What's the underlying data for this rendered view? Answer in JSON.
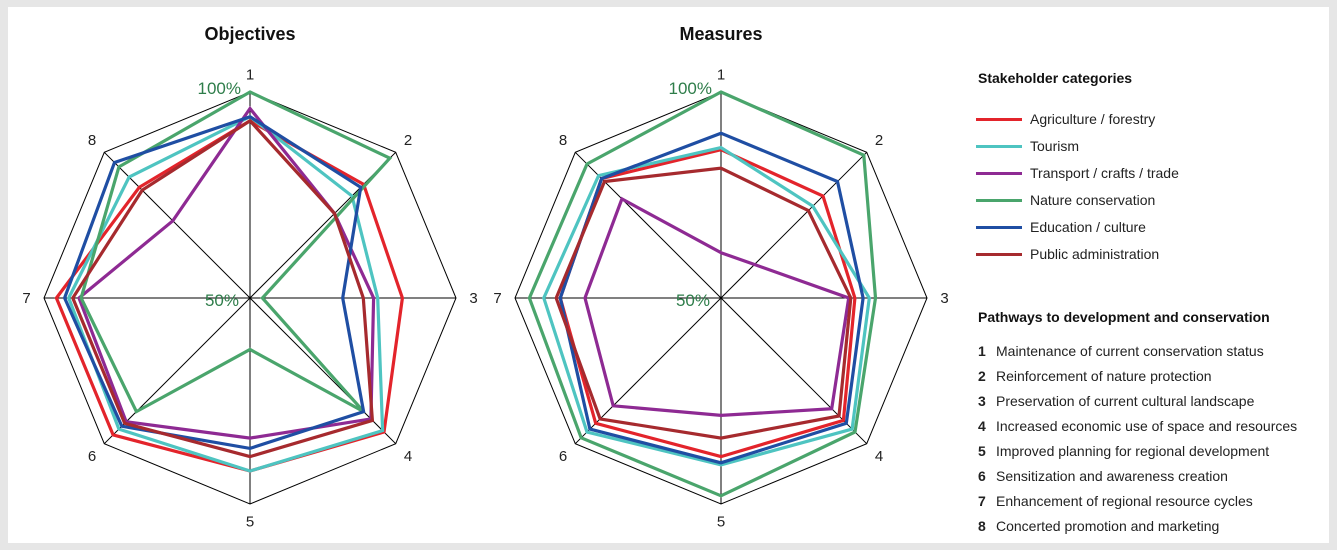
{
  "chart_data": [
    {
      "type": "radar",
      "title": "Objectives",
      "axes": [
        "1",
        "2",
        "3",
        "4",
        "5",
        "6",
        "7",
        "8"
      ],
      "scale_labels": {
        "max": "100%",
        "mid": "50%"
      },
      "range": [
        0,
        100
      ],
      "series": [
        {
          "name": "Agriculture / forestry",
          "values": [
            86,
            78,
            74,
            92,
            84,
            94,
            94,
            76
          ]
        },
        {
          "name": "Tourism",
          "values": [
            88,
            70,
            62,
            91,
            84,
            90,
            88,
            83
          ]
        },
        {
          "name": "Transport / crafts / trade",
          "values": [
            92,
            58,
            60,
            83,
            68,
            85,
            83,
            53
          ]
        },
        {
          "name": "Nature conservation",
          "values": [
            100,
            96,
            6,
            78,
            25,
            78,
            82,
            90
          ]
        },
        {
          "name": "Education / culture",
          "values": [
            88,
            76,
            45,
            78,
            73,
            88,
            90,
            93
          ]
        },
        {
          "name": "Public administration",
          "values": [
            86,
            58,
            55,
            84,
            77,
            86,
            86,
            74
          ]
        }
      ]
    },
    {
      "type": "radar",
      "title": "Measures",
      "axes": [
        "1",
        "2",
        "3",
        "4",
        "5",
        "6",
        "7",
        "8"
      ],
      "scale_labels": {
        "max": "100%",
        "mid": "50%"
      },
      "range": [
        0,
        100
      ],
      "series": [
        {
          "name": "Agriculture / forestry",
          "values": [
            72,
            70,
            65,
            84,
            77,
            86,
            78,
            82
          ]
        },
        {
          "name": "Tourism",
          "values": [
            73,
            63,
            72,
            90,
            81,
            92,
            86,
            84
          ]
        },
        {
          "name": "Transport / crafts / trade",
          "values": [
            22,
            23,
            62,
            76,
            57,
            74,
            66,
            68
          ]
        },
        {
          "name": "Nature conservation",
          "values": [
            100,
            98,
            75,
            92,
            96,
            96,
            93,
            92
          ]
        },
        {
          "name": "Education / culture",
          "values": [
            80,
            80,
            69,
            86,
            80,
            90,
            78,
            82
          ]
        },
        {
          "name": "Public administration",
          "values": [
            63,
            60,
            63,
            81,
            68,
            83,
            80,
            80
          ]
        }
      ]
    }
  ],
  "colors": {
    "Agriculture / forestry": "#e3242b",
    "Tourism": "#4ec4c1",
    "Transport / crafts / trade": "#8e2a93",
    "Nature conservation": "#4aa56c",
    "Education / culture": "#1f4ea3",
    "Public administration": "#a62a2e",
    "scale_label": "#2e7d4a"
  },
  "legend": {
    "stakeholder_title": "Stakeholder categories",
    "stakeholders": [
      "Agriculture / forestry",
      "Tourism",
      "Transport / crafts / trade",
      "Nature conservation",
      "Education / culture",
      "Public administration"
    ],
    "pathways_title": "Pathways to development and conservation",
    "pathways": [
      {
        "num": "1",
        "label": "Maintenance of current conservation status"
      },
      {
        "num": "2",
        "label": "Reinforcement of nature protection"
      },
      {
        "num": "3",
        "label": "Preservation of current cultural landscape"
      },
      {
        "num": "4",
        "label": "Increased economic use of space and resources"
      },
      {
        "num": "5",
        "label": "Improved planning for regional development"
      },
      {
        "num": "6",
        "label": "Sensitization and awareness creation"
      },
      {
        "num": "7",
        "label": "Enhancement of regional resource cycles"
      },
      {
        "num": "8",
        "label": "Concerted promotion and marketing"
      }
    ]
  }
}
